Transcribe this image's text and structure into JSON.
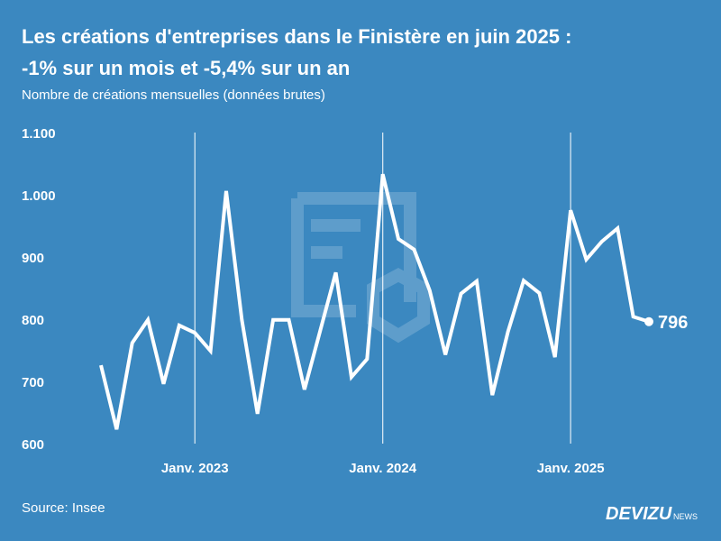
{
  "chart_data": {
    "type": "line",
    "title": "Les créations d'entreprises dans le Finistère en juin 2025 :",
    "title_line2": "-1% sur un mois et -5,4% sur un an",
    "subtitle": "Nombre de créations mensuelles (données brutes)",
    "source": "Source: Insee",
    "brand": "DEVIZU",
    "brand_suffix": "NEWS",
    "categories": [
      null,
      null,
      null,
      null,
      null,
      null,
      "Janv. 2023",
      null,
      null,
      null,
      null,
      null,
      null,
      null,
      null,
      null,
      null,
      null,
      "Janv. 2024",
      null,
      null,
      null,
      null,
      null,
      null,
      null,
      null,
      null,
      null,
      null,
      "Janv. 2025",
      null,
      null,
      null,
      null,
      null
    ],
    "series": [
      {
        "name": "Créations",
        "color": "#ffffff",
        "values": [
          726,
          623,
          762,
          799,
          696,
          790,
          778,
          749,
          1006,
          799,
          648,
          799,
          799,
          687,
          781,
          875,
          707,
          736,
          1033,
          929,
          912,
          846,
          743,
          841,
          861,
          678,
          780,
          862,
          842,
          739,
          975,
          896,
          925,
          946,
          804,
          796
        ]
      }
    ],
    "ylim": [
      600,
      1100
    ],
    "yticks": [
      600,
      700,
      800,
      900,
      {
        "value": 1000,
        "label": "1.000"
      },
      {
        "value": 1100,
        "label": "1.100"
      }
    ],
    "grid": true
  }
}
